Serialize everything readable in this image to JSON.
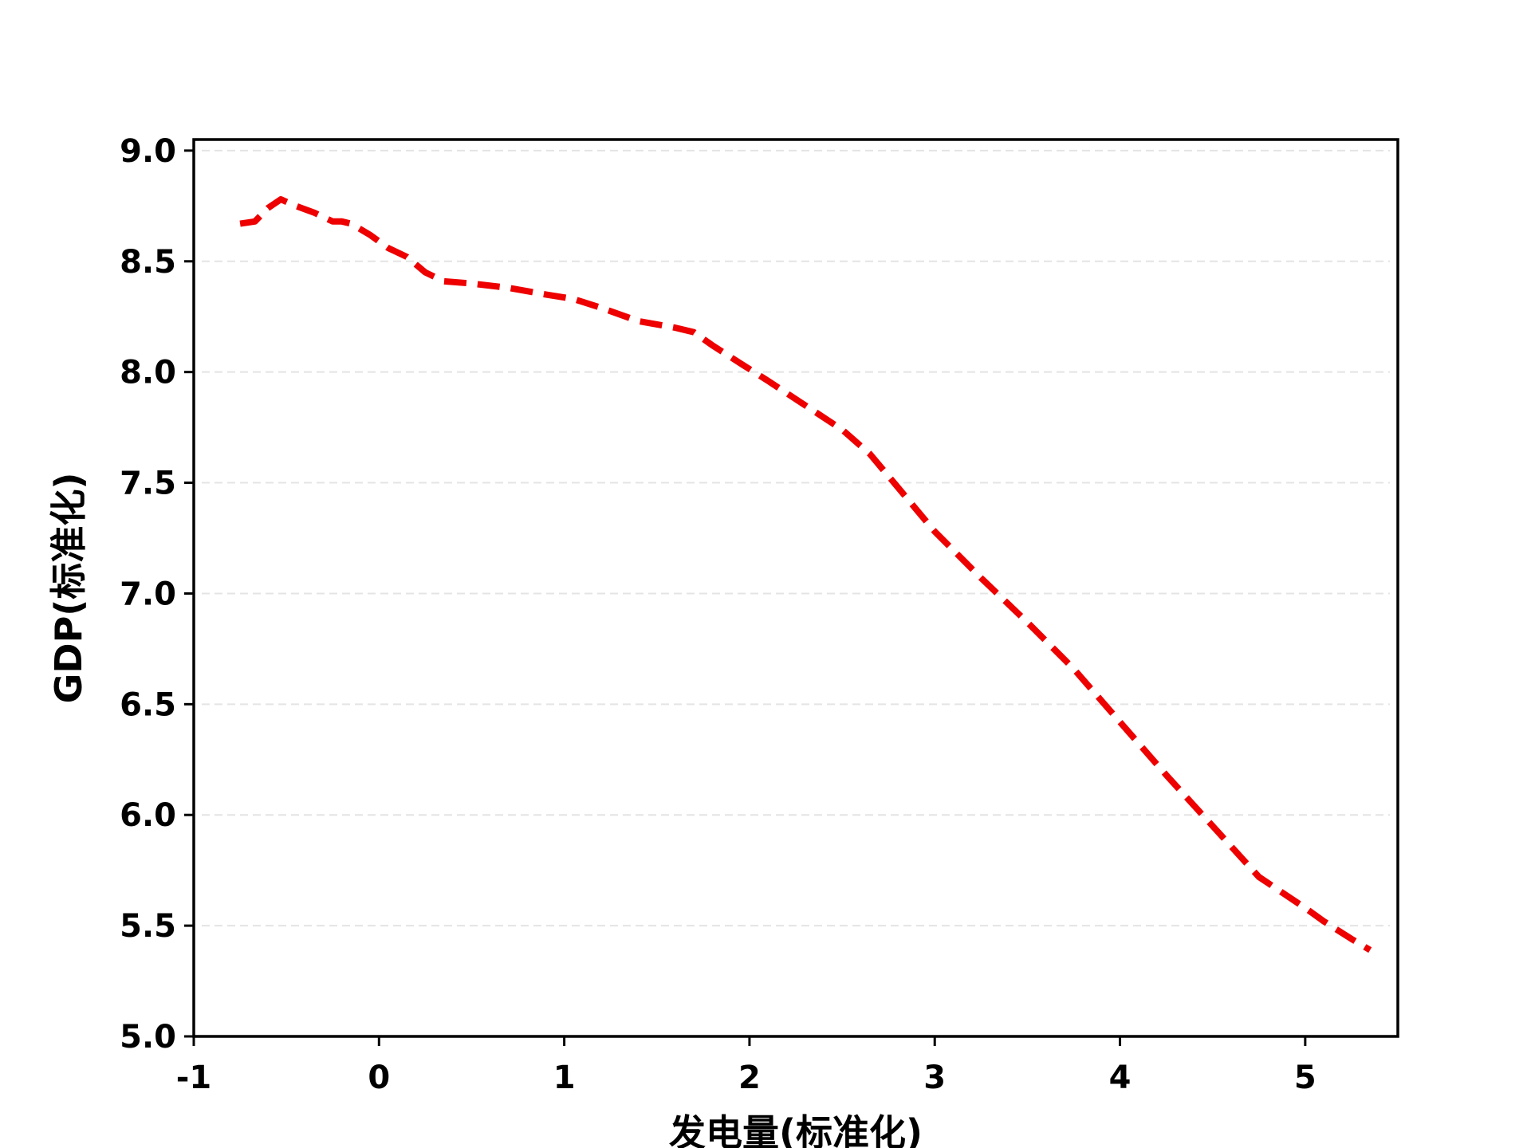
{
  "chart_data": {
    "type": "line",
    "title": "",
    "xlabel": "发电量(标准化)",
    "ylabel": "GDP(标准化)",
    "xlim": [
      -1,
      5.5
    ],
    "ylim": [
      5.0,
      9.05
    ],
    "xticks": [
      -1,
      0,
      1,
      2,
      3,
      4,
      5
    ],
    "xtick_labels": [
      "-1",
      "0",
      "1",
      "2",
      "3",
      "4",
      "5"
    ],
    "yticks": [
      5.0,
      5.5,
      6.0,
      6.5,
      7.0,
      7.5,
      8.0,
      8.5,
      9.0
    ],
    "ytick_labels": [
      "5.0",
      "5.5",
      "6.0",
      "6.5",
      "7.0",
      "7.5",
      "8.0",
      "8.5",
      "9.0"
    ],
    "grid": "horizontal-dashed",
    "legend": "none",
    "series": [
      {
        "color": "#ee0000",
        "line_style": "dashed",
        "x": [
          -0.75,
          -0.67,
          -0.6,
          -0.53,
          -0.45,
          -0.35,
          -0.25,
          -0.2,
          -0.15,
          -0.05,
          0.05,
          0.15,
          0.25,
          0.35,
          0.5,
          0.7,
          0.9,
          1.05,
          1.2,
          1.4,
          1.6,
          1.7,
          1.8,
          1.95,
          2.1,
          2.3,
          2.5,
          2.65,
          2.8,
          3.0,
          3.25,
          3.5,
          3.75,
          4.0,
          4.25,
          4.5,
          4.75,
          5.0,
          5.1,
          5.25,
          5.35
        ],
        "y": [
          8.67,
          8.68,
          8.74,
          8.78,
          8.75,
          8.72,
          8.68,
          8.68,
          8.67,
          8.62,
          8.56,
          8.52,
          8.45,
          8.41,
          8.4,
          8.38,
          8.35,
          8.33,
          8.29,
          8.23,
          8.2,
          8.18,
          8.12,
          8.04,
          7.96,
          7.85,
          7.74,
          7.63,
          7.48,
          7.28,
          7.07,
          6.87,
          6.66,
          6.42,
          6.18,
          5.95,
          5.72,
          5.58,
          5.52,
          5.44,
          5.39
        ]
      }
    ]
  }
}
